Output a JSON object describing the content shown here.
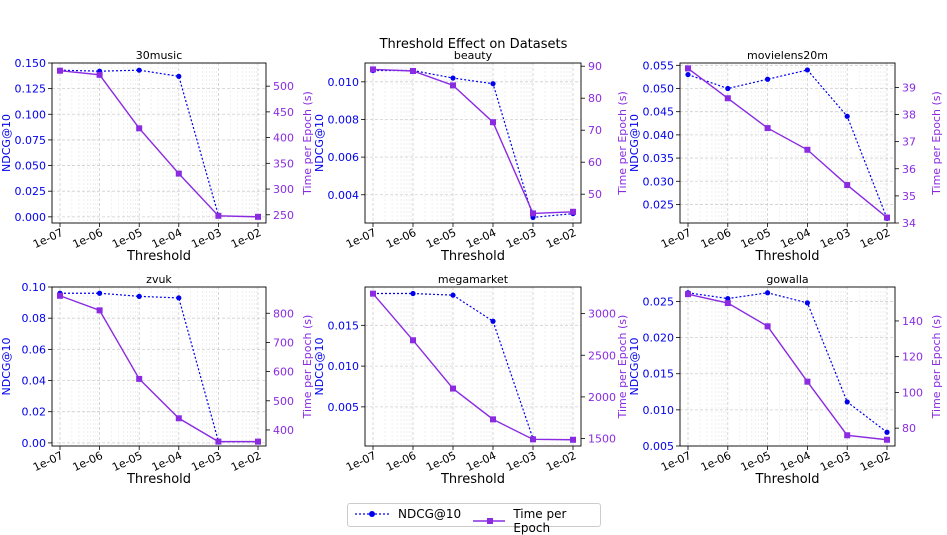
{
  "figure": {
    "title": "Threshold Effect on Datasets",
    "legend": {
      "ndcg_label": "NDCG@10",
      "time_label": "Time per Epoch"
    },
    "colors": {
      "ndcg": "#0000ee",
      "time": "#8a2be2"
    }
  },
  "chart_data": [
    {
      "type": "line",
      "title": "30music",
      "xlabel": "Threshold",
      "ylabel_left": "NDCG@10",
      "ylabel_right": "Time per Epoch (s)",
      "x": [
        "1e-07",
        "1e-06",
        "1e-05",
        "1e-04",
        "1e-03",
        "1e-02"
      ],
      "ylim_left": [
        -0.006,
        0.15
      ],
      "ylim_right": [
        234,
        545
      ],
      "yticks_left": [
        "0.000",
        "0.025",
        "0.050",
        "0.075",
        "0.100",
        "0.125",
        "0.150"
      ],
      "yticks_right": [
        "250",
        "300",
        "350",
        "400",
        "450",
        "500"
      ],
      "series": [
        {
          "name": "NDCG@10",
          "axis": "left",
          "values": [
            0.143,
            0.142,
            0.143,
            0.137,
            0.0015,
            null
          ]
        },
        {
          "name": "Time per Epoch",
          "axis": "right",
          "values": [
            530,
            522,
            418,
            330,
            248,
            246
          ]
        }
      ]
    },
    {
      "type": "line",
      "title": "beauty",
      "xlabel": "Threshold",
      "ylabel_left": "NDCG@10",
      "ylabel_right": "Time per Epoch (s)",
      "x": [
        "1e-07",
        "1e-06",
        "1e-05",
        "1e-04",
        "1e-03",
        "1e-02"
      ],
      "ylim_left": [
        0.0025,
        0.011
      ],
      "ylim_right": [
        41,
        91
      ],
      "yticks_left": [
        "0.004",
        "0.006",
        "0.008",
        "0.010"
      ],
      "yticks_right": [
        "50",
        "60",
        "70",
        "80",
        "90"
      ],
      "series": [
        {
          "name": "NDCG@10",
          "axis": "left",
          "values": [
            0.0106,
            0.0106,
            0.0102,
            0.0099,
            0.0028,
            0.003
          ]
        },
        {
          "name": "Time per Epoch",
          "axis": "right",
          "values": [
            89,
            88.5,
            84,
            72.5,
            44,
            44.5
          ]
        }
      ]
    },
    {
      "type": "line",
      "title": "movielens20m",
      "xlabel": "Threshold",
      "ylabel_left": "NDCG@10",
      "ylabel_right": "Time per Epoch (s)",
      "x": [
        "1e-07",
        "1e-06",
        "1e-05",
        "1e-04",
        "1e-03",
        "1e-02"
      ],
      "ylim_left": [
        0.021,
        0.0555
      ],
      "ylim_right": [
        34.0,
        39.9
      ],
      "yticks_left": [
        "0.025",
        "0.030",
        "0.035",
        "0.040",
        "0.045",
        "0.050",
        "0.055"
      ],
      "yticks_right": [
        "34",
        "35",
        "36",
        "37",
        "38",
        "39"
      ],
      "series": [
        {
          "name": "NDCG@10",
          "axis": "left",
          "values": [
            0.053,
            0.05,
            0.052,
            0.054,
            0.044,
            0.022
          ]
        },
        {
          "name": "Time per Epoch",
          "axis": "right",
          "values": [
            39.7,
            38.6,
            37.5,
            36.7,
            35.4,
            34.2
          ]
        }
      ]
    },
    {
      "type": "line",
      "title": "zvuk",
      "xlabel": "Threshold",
      "ylabel_left": "NDCG@10",
      "ylabel_right": "Time per Epoch (s)",
      "x": [
        "1e-07",
        "1e-06",
        "1e-05",
        "1e-04",
        "1e-03",
        "1e-02"
      ],
      "ylim_left": [
        -0.002,
        0.1
      ],
      "ylim_right": [
        345,
        890
      ],
      "yticks_left": [
        "0.00",
        "0.02",
        "0.04",
        "0.06",
        "0.08",
        "0.10"
      ],
      "yticks_right": [
        "400",
        "500",
        "600",
        "700",
        "800"
      ],
      "series": [
        {
          "name": "NDCG@10",
          "axis": "left",
          "values": [
            0.096,
            0.096,
            0.094,
            0.093,
            0.001,
            null
          ]
        },
        {
          "name": "Time per Epoch",
          "axis": "right",
          "values": [
            860,
            810,
            575,
            440,
            360,
            360
          ]
        }
      ]
    },
    {
      "type": "line",
      "title": "megamarket",
      "xlabel": "Threshold",
      "ylabel_left": "NDCG@10",
      "ylabel_right": "Time per Epoch (s)",
      "x": [
        "1e-07",
        "1e-06",
        "1e-05",
        "1e-04",
        "1e-03",
        "1e-02"
      ],
      "ylim_left": [
        0.0002,
        0.0197
      ],
      "ylim_right": [
        1410,
        3320
      ],
      "yticks_left": [
        "0.005",
        "0.010",
        "0.015"
      ],
      "yticks_right": [
        "1500",
        "2000",
        "2500",
        "3000"
      ],
      "series": [
        {
          "name": "NDCG@10",
          "axis": "left",
          "values": [
            0.0189,
            0.0189,
            0.0187,
            0.0155,
            0.0011,
            null
          ]
        },
        {
          "name": "Time per Epoch",
          "axis": "right",
          "values": [
            3240,
            2680,
            2100,
            1730,
            1490,
            1485
          ]
        }
      ]
    },
    {
      "type": "line",
      "title": "gowalla",
      "xlabel": "Threshold",
      "ylabel_left": "NDCG@10",
      "ylabel_right": "Time per Epoch (s)",
      "x": [
        "1e-07",
        "1e-06",
        "1e-05",
        "1e-04",
        "1e-03",
        "1e-02"
      ],
      "ylim_left": [
        0.005,
        0.027
      ],
      "ylim_right": [
        70,
        159
      ],
      "yticks_left": [
        "0.005",
        "0.010",
        "0.015",
        "0.020",
        "0.025"
      ],
      "yticks_right": [
        "80",
        "100",
        "120",
        "140"
      ],
      "series": [
        {
          "name": "NDCG@10",
          "axis": "left",
          "values": [
            0.0262,
            0.0254,
            0.0262,
            0.0248,
            0.0111,
            0.0069
          ]
        },
        {
          "name": "Time per Epoch",
          "axis": "right",
          "values": [
            155,
            150,
            137,
            106,
            76,
            73.5
          ]
        }
      ]
    }
  ]
}
